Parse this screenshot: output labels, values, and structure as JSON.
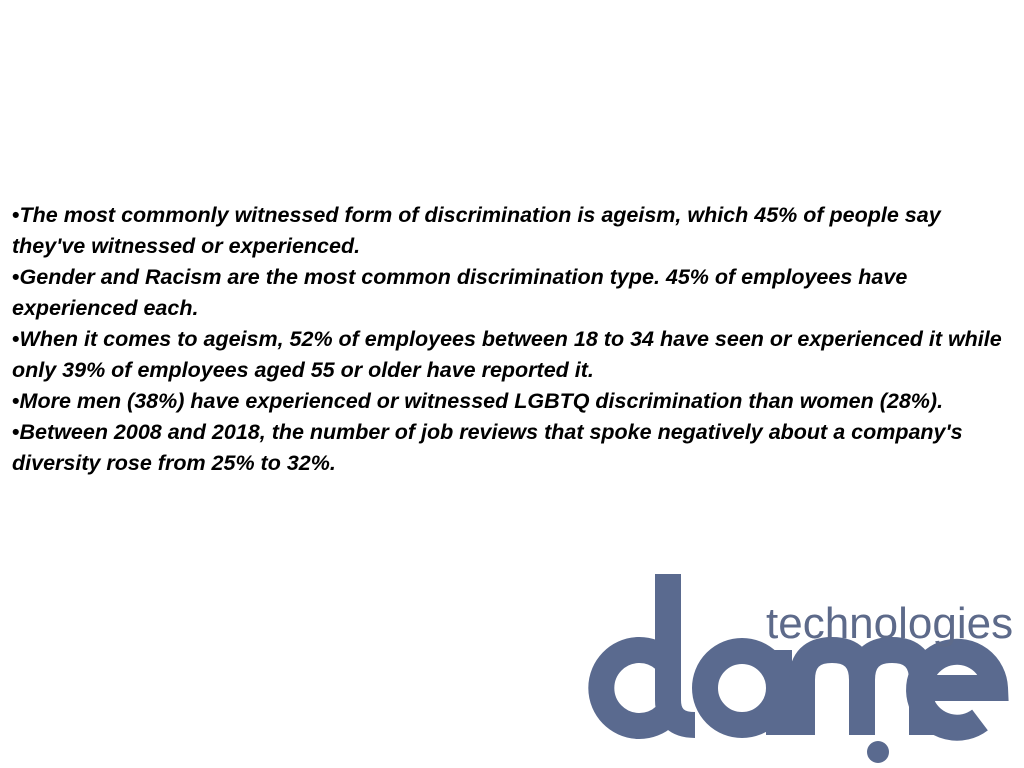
{
  "bullets": [
    "The most commonly witnessed form of discrimination is ageism, which 45% of people say they've witnessed or experienced.",
    "Gender and Racism are the most common discrimination type. 45% of employees have experienced each.",
    "When it comes to ageism, 52% of employees between 18 to 34 have seen or experienced it while only 39% of employees aged 55 or older have reported it.",
    "More men (38%) have experienced or witnessed LGBTQ discrimination than women (28%).",
    "Between 2008 and 2018, the number of job reviews that spoke negatively about a company's diversity rose from 25% to 32%."
  ],
  "logo": {
    "text": "technologies"
  }
}
